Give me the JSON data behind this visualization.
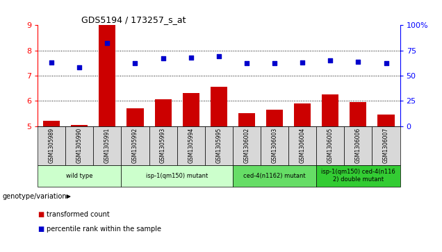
{
  "title": "GDS5194 / 173257_s_at",
  "samples": [
    "GSM1305989",
    "GSM1305990",
    "GSM1305991",
    "GSM1305992",
    "GSM1305993",
    "GSM1305994",
    "GSM1305995",
    "GSM1306002",
    "GSM1306003",
    "GSM1306004",
    "GSM1306005",
    "GSM1306006",
    "GSM1306007"
  ],
  "transformed_count": [
    5.2,
    5.05,
    9.0,
    5.7,
    6.05,
    6.3,
    6.55,
    5.5,
    5.65,
    5.9,
    6.25,
    5.95,
    5.45
  ],
  "percentile_rank": [
    63,
    58,
    82,
    62,
    67,
    68,
    69,
    62,
    62,
    63,
    65,
    64,
    62
  ],
  "ylim_left": [
    5,
    9
  ],
  "ylim_right": [
    0,
    100
  ],
  "yticks_left": [
    5,
    6,
    7,
    8,
    9
  ],
  "yticks_right": [
    0,
    25,
    50,
    75,
    100
  ],
  "bar_color": "#cc0000",
  "dot_color": "#0000cc",
  "plot_bg": "#ffffff",
  "gray_bg": "#d8d8d8",
  "groups": [
    {
      "label": "wild type",
      "start": 0,
      "end": 3,
      "color": "#ccffcc"
    },
    {
      "label": "isp-1(qm150) mutant",
      "start": 3,
      "end": 7,
      "color": "#ccffcc"
    },
    {
      "label": "ced-4(n1162) mutant",
      "start": 7,
      "end": 10,
      "color": "#66dd66"
    },
    {
      "label": "isp-1(qm150) ced-4(n116\n2) double mutant",
      "start": 10,
      "end": 13,
      "color": "#33cc33"
    }
  ],
  "legend_bar_label": "transformed count",
  "legend_dot_label": "percentile rank within the sample",
  "genotype_label": "genotype/variation"
}
